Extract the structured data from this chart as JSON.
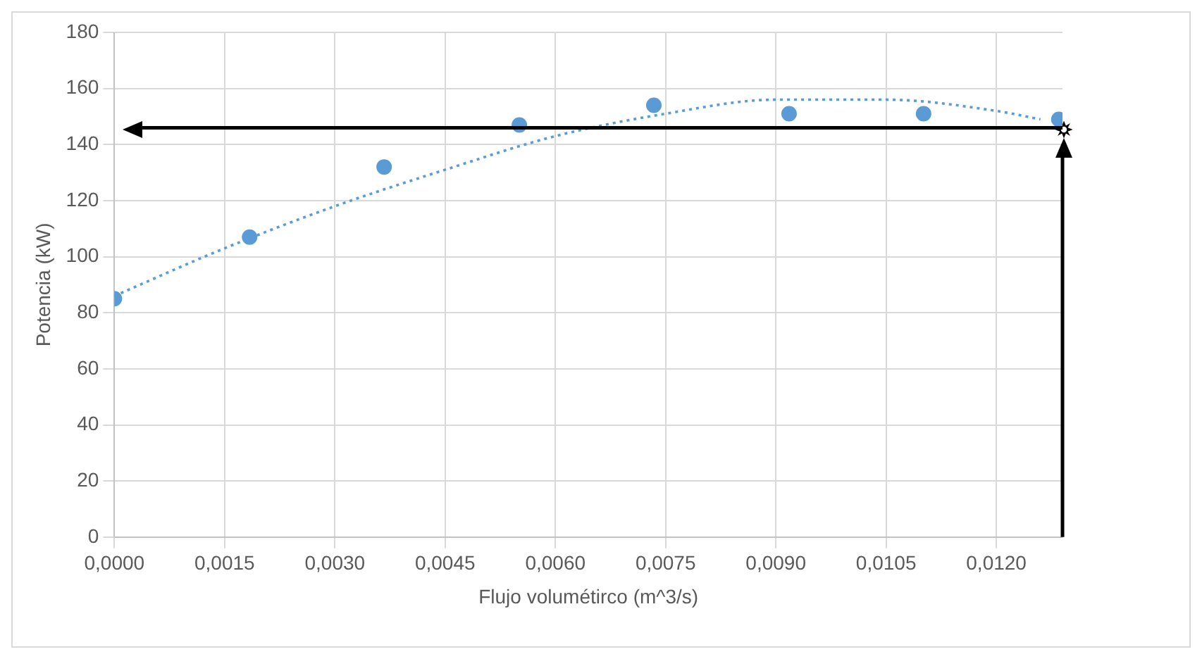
{
  "chart_data": {
    "type": "scatter",
    "xlabel": "Flujo volumétirco (m^3/s)",
    "ylabel": "Potencia (kW)",
    "xlim": [
      0,
      0.0129
    ],
    "xticks": [
      {
        "value": 0,
        "label": "0,0000"
      },
      {
        "value": 0.0015,
        "label": "0,0015"
      },
      {
        "value": 0.003,
        "label": "0,0030"
      },
      {
        "value": 0.0045,
        "label": "0,0045"
      },
      {
        "value": 0.006,
        "label": "0,0060"
      },
      {
        "value": 0.0075,
        "label": "0,0075"
      },
      {
        "value": 0.009,
        "label": "0,0090"
      },
      {
        "value": 0.0105,
        "label": "0,0105"
      },
      {
        "value": 0.012,
        "label": "0,0120"
      }
    ],
    "ylim": [
      0,
      180
    ],
    "yticks": [
      0,
      20,
      40,
      60,
      80,
      100,
      120,
      140,
      160,
      180
    ],
    "grid": true,
    "legend": false,
    "series": [
      {
        "color": "#5b9bd5",
        "marker": "circle",
        "x": [
          0,
          0.00184,
          0.00367,
          0.00551,
          0.00734,
          0.00918,
          0.01101,
          0.01285
        ],
        "values": [
          85,
          107,
          132,
          147,
          154,
          151,
          151,
          149
        ]
      },
      {
        "type": "line",
        "color": "#5b9bd5",
        "marker": "none",
        "line_style": "dotted",
        "x": [
          0,
          0.0015,
          0.003,
          0.0045,
          0.006,
          0.0075,
          0.009,
          0.0105,
          0.012,
          0.0126
        ],
        "values": [
          86,
          103,
          118,
          131,
          143,
          151,
          156,
          156,
          152,
          149
        ]
      }
    ],
    "ref_lines": [
      {
        "axis": "y",
        "value": 146,
        "color": "#000000"
      },
      {
        "axis": "x",
        "value": 0.0129,
        "color": "#000000"
      }
    ]
  }
}
